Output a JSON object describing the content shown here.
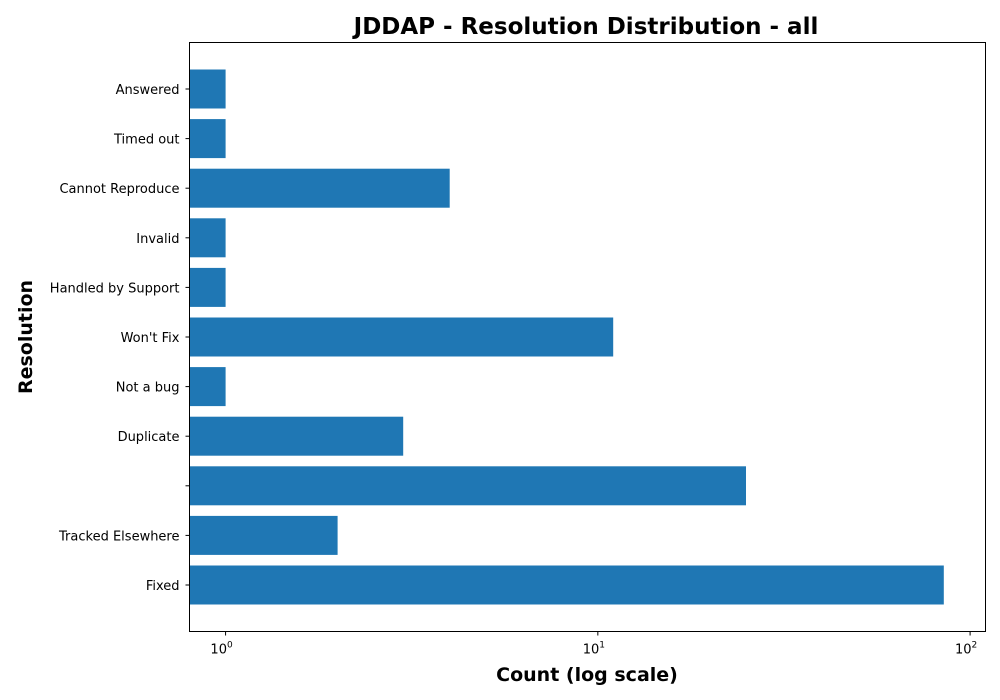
{
  "chart_data": {
    "type": "bar",
    "orientation": "horizontal",
    "title": "JDDAP - Resolution Distribution - all",
    "xlabel": "Count (log scale)",
    "ylabel": "Resolution",
    "x_scale": "log",
    "xlim": [
      0.8,
      110
    ],
    "x_ticks": [
      {
        "base": "10",
        "exp": "0",
        "value": 1
      },
      {
        "base": "10",
        "exp": "1",
        "value": 10
      },
      {
        "base": "10",
        "exp": "2",
        "value": 100
      }
    ],
    "categories": [
      "Answered",
      "Timed out",
      "Cannot Reproduce",
      "Invalid",
      "Handled by Support",
      "Won't Fix",
      "Not a bug",
      "Duplicate",
      "",
      "Tracked Elsewhere",
      "Fixed"
    ],
    "values": [
      1,
      1,
      4,
      1,
      1,
      11,
      1,
      3,
      25,
      2,
      85
    ],
    "bar_color": "#1f77b4",
    "grid": false,
    "legend": "none"
  }
}
